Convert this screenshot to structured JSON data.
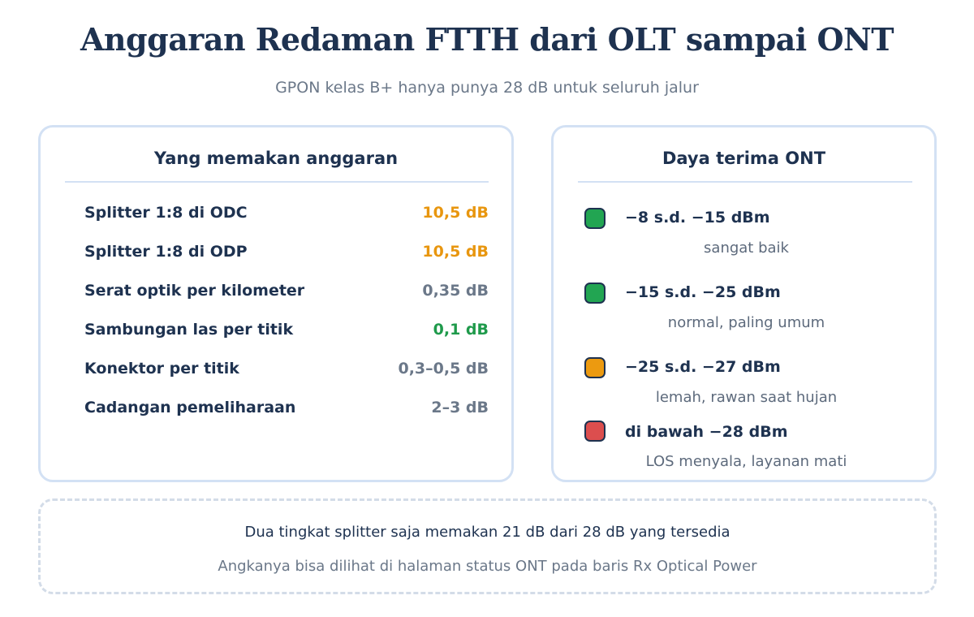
{
  "header": {
    "title": "Anggaran Redaman FTTH dari OLT sampai ONT",
    "subtitle": "GPON kelas B+ hanya punya 28 dB untuk seluruh jalur"
  },
  "budget": {
    "title": "Yang memakan anggaran",
    "items": [
      {
        "label": "Splitter 1:8 di ODC",
        "value": "10,5 dB",
        "color": "#e8960f"
      },
      {
        "label": "Splitter 1:8 di ODP",
        "value": "10,5 dB",
        "color": "#e8960f"
      },
      {
        "label": "Serat optik per kilometer",
        "value": "0,35 dB",
        "color": "#6b7889"
      },
      {
        "label": "Sambungan las per titik",
        "value": "0,1 dB",
        "color": "#1f9a4b"
      },
      {
        "label": "Konektor per titik",
        "value": "0,3–0,5 dB",
        "color": "#6b7889"
      },
      {
        "label": "Cadangan pemeliharaan",
        "value": "2–3 dB",
        "color": "#6b7889"
      }
    ]
  },
  "rx_power": {
    "title": "Daya terima ONT",
    "levels": [
      {
        "range": "−8 s.d. −15 dBm",
        "desc": "sangat baik",
        "color": "#22a552",
        "icon": "green-status-icon"
      },
      {
        "range": "−15 s.d. −25 dBm",
        "desc": "normal, paling umum",
        "color": "#22a552",
        "icon": "green-status-icon"
      },
      {
        "range": "−25 s.d. −27 dBm",
        "desc": "lemah, rawan saat hujan",
        "color": "#ec9a10",
        "icon": "orange-status-icon"
      },
      {
        "range": "di bawah −28 dBm",
        "desc": "LOS menyala, layanan mati",
        "color": "#dc4e4e",
        "icon": "red-status-icon"
      }
    ]
  },
  "note": {
    "main": "Dua tingkat splitter saja memakan 21 dB dari 28 dB yang tersedia",
    "sub": "Angkanya bisa dilihat di halaman status ONT pada baris Rx Optical Power"
  }
}
